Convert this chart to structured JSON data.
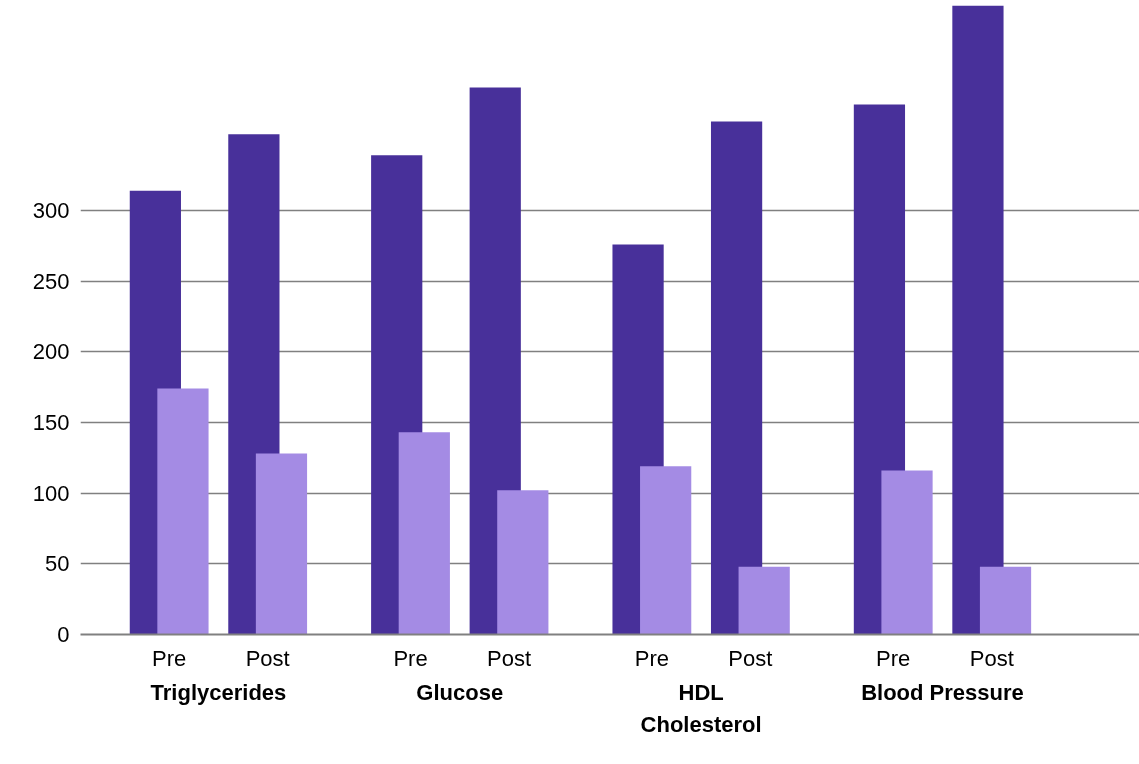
{
  "chart_data": {
    "type": "bar",
    "categories": [
      "Pre",
      "Post",
      "Pre",
      "Post",
      "Pre",
      "Post",
      "Pre",
      "Post"
    ],
    "series": [
      {
        "color": "#48309a",
        "values": [
          314,
          354,
          339,
          387,
          276,
          363,
          375,
          445
        ]
      },
      {
        "color": "#a48be4",
        "values": [
          174,
          128,
          143,
          102,
          119,
          48,
          116,
          48
        ]
      }
    ],
    "annotations": [
      "Triglycerides",
      "Glucose",
      "HDL Cholesterol",
      "Blood Pressure"
    ],
    "ylim": [
      0,
      445
    ],
    "yticks": [
      0,
      50,
      100,
      150,
      200,
      250,
      300
    ],
    "grid": "y"
  }
}
